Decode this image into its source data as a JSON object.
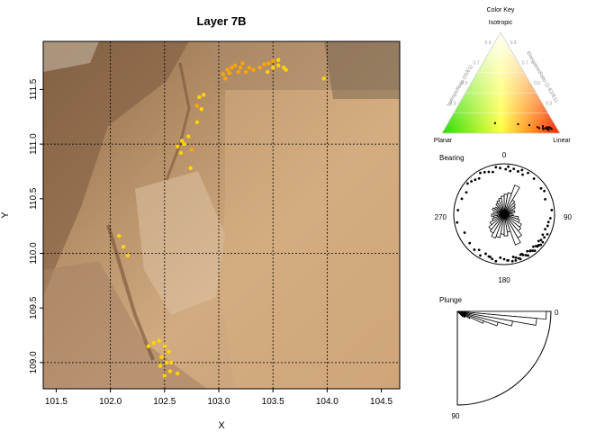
{
  "colors": {
    "point_yellow": "#ffd400",
    "point_orange": "#ffa500",
    "grid": "#000000",
    "ternary_red": "#ff2000",
    "ternary_yellow": "#ffff40",
    "ternary_green": "#22dd00"
  },
  "chart_data": [
    {
      "type": "scatter",
      "title": "Layer 7B",
      "xlabel": "X",
      "ylabel": "Y",
      "xlim": [
        101.38,
        104.67
      ],
      "ylim": [
        108.76,
        111.94
      ],
      "xticks": [
        "101.5",
        "102.0",
        "102.5",
        "103.0",
        "103.5",
        "104.0",
        "104.5"
      ],
      "xtick_values": [
        101.5,
        102.0,
        102.5,
        103.0,
        103.5,
        104.0,
        104.5
      ],
      "yticks": [
        "109.0",
        "109.5",
        "110.0",
        "110.5",
        "111.0",
        "111.5"
      ],
      "ytick_values": [
        109.0,
        109.5,
        110.0,
        110.5,
        111.0,
        111.5
      ],
      "grid": true,
      "background": "photograph of excavation surface",
      "series": [
        {
          "color": "yellow",
          "points": [
            [
              102.08,
              110.16
            ],
            [
              102.12,
              110.06
            ],
            [
              102.16,
              109.98
            ],
            [
              102.35,
              109.15
            ],
            [
              102.4,
              109.18
            ],
            [
              102.45,
              109.2
            ],
            [
              102.5,
              109.15
            ],
            [
              102.54,
              109.1
            ],
            [
              102.47,
              109.05
            ],
            [
              102.52,
              109.0
            ],
            [
              102.56,
              109.0
            ],
            [
              102.46,
              108.97
            ],
            [
              102.55,
              108.92
            ],
            [
              102.62,
              108.9
            ],
            [
              102.5,
              108.88
            ],
            [
              102.62,
              110.98
            ],
            [
              102.65,
              110.92
            ],
            [
              102.68,
              111.0
            ],
            [
              102.66,
              111.03
            ],
            [
              102.72,
              111.07
            ],
            [
              102.74,
              110.78
            ],
            [
              102.8,
              111.2
            ],
            [
              102.84,
              111.32
            ],
            [
              102.82,
              111.43
            ],
            [
              102.86,
              111.45
            ],
            [
              103.45,
              111.66
            ],
            [
              103.5,
              111.7
            ],
            [
              103.55,
              111.72
            ],
            [
              103.6,
              111.7
            ],
            [
              103.62,
              111.68
            ],
            [
              103.55,
              111.77
            ],
            [
              103.97,
              111.6
            ]
          ]
        },
        {
          "color": "orange",
          "points": [
            [
              103.04,
              111.64
            ],
            [
              103.06,
              111.6
            ],
            [
              103.08,
              111.68
            ],
            [
              103.1,
              111.65
            ],
            [
              103.12,
              111.7
            ],
            [
              103.15,
              111.72
            ],
            [
              103.18,
              111.66
            ],
            [
              103.2,
              111.7
            ],
            [
              103.22,
              111.74
            ],
            [
              103.25,
              111.66
            ],
            [
              103.28,
              111.7
            ],
            [
              103.32,
              111.68
            ],
            [
              103.38,
              111.7
            ],
            [
              103.42,
              111.73
            ],
            [
              103.46,
              111.74
            ],
            [
              103.5,
              111.76
            ],
            [
              102.75,
              110.95
            ],
            [
              102.8,
              111.35
            ]
          ]
        }
      ]
    },
    {
      "type": "ternary",
      "title": "Color Key",
      "vertices": [
        "Isotropic",
        "Planar",
        "Linear"
      ],
      "left_axis_label": "IsotropicRatio (IS/E1)",
      "right_axis_label": "ElongationRatio (1-E2/E1)",
      "left_ticks": [
        "0.9",
        "0.7",
        "0.5",
        "0.3"
      ],
      "right_ticks": [
        "0.9",
        "0.7",
        "0.5",
        "0.3"
      ],
      "bottom_ticks": [
        "0.1",
        "0.3",
        "0.5",
        "0.7",
        "0.9"
      ],
      "points": [
        [
          0.4,
          0.1
        ],
        [
          0.78,
          0.06
        ],
        [
          0.8,
          0.05
        ],
        [
          0.82,
          0.07
        ],
        [
          0.84,
          0.04
        ],
        [
          0.85,
          0.05
        ],
        [
          0.86,
          0.06
        ],
        [
          0.87,
          0.04
        ],
        [
          0.88,
          0.05
        ],
        [
          0.89,
          0.03
        ],
        [
          0.9,
          0.05
        ],
        [
          0.88,
          0.06
        ],
        [
          0.7,
          0.08
        ],
        [
          0.6,
          0.09
        ],
        [
          0.83,
          0.05
        ],
        [
          0.91,
          0.04
        ]
      ]
    },
    {
      "type": "rose",
      "title": "Bearing",
      "angle_labels": [
        "0",
        "90",
        "180",
        "270"
      ],
      "bins_deg": [
        0,
        10,
        20,
        30,
        40,
        50,
        60,
        70,
        80,
        90,
        100,
        110,
        120,
        130,
        140,
        150,
        160,
        170,
        180,
        190,
        200,
        210,
        220,
        230,
        240,
        250,
        260,
        270,
        280,
        290,
        300,
        310,
        320,
        330,
        340,
        350
      ],
      "lengths": [
        0.55,
        0.6,
        0.85,
        0.45,
        0.4,
        0.35,
        0.25,
        0.3,
        0.2,
        0.25,
        0.4,
        0.45,
        0.55,
        0.6,
        0.75,
        0.9,
        0.5,
        0.6,
        0.55,
        0.65,
        0.7,
        0.6,
        0.55,
        0.45,
        0.35,
        0.3,
        0.35,
        0.3,
        0.2,
        0.35,
        0.3,
        0.25,
        0.35,
        0.4,
        0.45,
        0.5
      ],
      "points_deg": [
        5,
        12,
        18,
        25,
        30,
        40,
        55,
        70,
        85,
        95,
        100,
        110,
        115,
        120,
        125,
        128,
        130,
        132,
        135,
        138,
        140,
        142,
        145,
        148,
        150,
        152,
        155,
        158,
        160,
        162,
        165,
        168,
        170,
        175,
        180,
        185,
        190,
        195,
        200,
        205,
        210,
        220,
        230,
        245,
        260,
        275,
        290,
        300,
        310,
        315,
        320,
        325,
        330,
        335,
        340,
        345,
        350,
        355,
        2,
        8,
        22,
        60,
        105,
        118,
        126,
        134,
        144,
        156,
        166,
        176,
        198,
        215
      ]
    },
    {
      "type": "rose",
      "title": "Plunge",
      "angle_labels": [
        "0",
        "90"
      ],
      "bins_deg": [
        0,
        5,
        10,
        15,
        20,
        25,
        30,
        35,
        40
      ],
      "lengths": [
        0.95,
        0.85,
        0.6,
        0.45,
        0.3,
        0.15,
        0.1,
        0.1,
        0.08
      ]
    }
  ]
}
